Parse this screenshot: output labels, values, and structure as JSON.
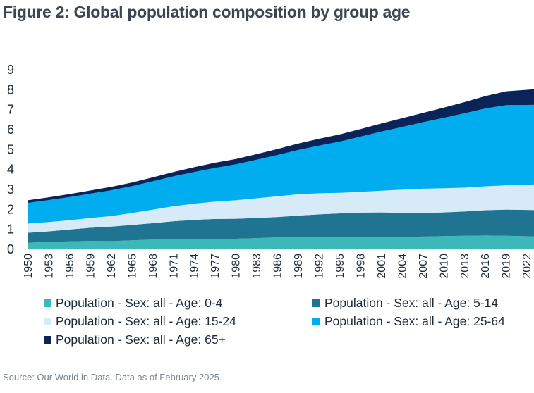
{
  "title": "Figure 2: Global population composition by group age",
  "source": "Source: Our World in Data. Data as of February 2025.",
  "chart_data": {
    "type": "area",
    "stacked": true,
    "ylim": [
      0,
      9
    ],
    "yticks": [
      0,
      1,
      2,
      3,
      4,
      5,
      6,
      7,
      8,
      9
    ],
    "xlim": [
      1950,
      2023
    ],
    "xticks": [
      "1950",
      "1953",
      "1956",
      "1959",
      "1962",
      "1965",
      "1968",
      "1971",
      "1974",
      "1977",
      "1980",
      "1983",
      "1986",
      "1989",
      "1992",
      "1995",
      "1998",
      "2001",
      "2004",
      "2007",
      "2010",
      "2013",
      "2016",
      "2019",
      "2022"
    ],
    "x": [
      1950,
      1953,
      1956,
      1959,
      1962,
      1965,
      1968,
      1971,
      1974,
      1977,
      1980,
      1983,
      1986,
      1989,
      1992,
      1995,
      1998,
      2001,
      2004,
      2007,
      2010,
      2013,
      2016,
      2019,
      2023
    ],
    "legend_position": "bottom",
    "series": [
      {
        "name": "Population - Sex: all - Age: 0-4",
        "color": "#3cb8b8",
        "values": [
          0.33,
          0.37,
          0.4,
          0.42,
          0.41,
          0.45,
          0.49,
          0.52,
          0.53,
          0.53,
          0.53,
          0.56,
          0.6,
          0.63,
          0.63,
          0.62,
          0.61,
          0.61,
          0.62,
          0.64,
          0.66,
          0.68,
          0.69,
          0.68,
          0.65
        ]
      },
      {
        "name": "Population - Sex: all - Age: 5-14",
        "color": "#1f7591",
        "values": [
          0.5,
          0.53,
          0.59,
          0.66,
          0.73,
          0.77,
          0.82,
          0.89,
          0.95,
          0.99,
          1.0,
          1.01,
          1.02,
          1.06,
          1.12,
          1.18,
          1.23,
          1.24,
          1.21,
          1.18,
          1.19,
          1.22,
          1.27,
          1.31,
          1.32
        ]
      },
      {
        "name": "Population - Sex: all - Age: 15-24",
        "color": "#d6ebf7",
        "values": [
          0.46,
          0.47,
          0.47,
          0.49,
          0.53,
          0.6,
          0.68,
          0.75,
          0.81,
          0.87,
          0.93,
          0.99,
          1.04,
          1.07,
          1.06,
          1.03,
          1.04,
          1.09,
          1.16,
          1.22,
          1.21,
          1.19,
          1.2,
          1.22,
          1.28
        ]
      },
      {
        "name": "Population - Sex: all - Age: 25-64",
        "color": "#00aeef",
        "values": [
          1.04,
          1.1,
          1.16,
          1.22,
          1.29,
          1.35,
          1.42,
          1.5,
          1.59,
          1.69,
          1.8,
          1.93,
          2.07,
          2.22,
          2.39,
          2.57,
          2.77,
          2.96,
          3.14,
          3.33,
          3.53,
          3.73,
          3.9,
          4.02,
          3.99
        ]
      },
      {
        "name": "Population - Sex: all - Age: 65+",
        "color": "#0a2359",
        "values": [
          0.13,
          0.14,
          0.15,
          0.16,
          0.17,
          0.18,
          0.2,
          0.22,
          0.24,
          0.26,
          0.27,
          0.28,
          0.3,
          0.32,
          0.34,
          0.36,
          0.38,
          0.41,
          0.44,
          0.47,
          0.51,
          0.56,
          0.62,
          0.69,
          0.78
        ]
      }
    ]
  }
}
